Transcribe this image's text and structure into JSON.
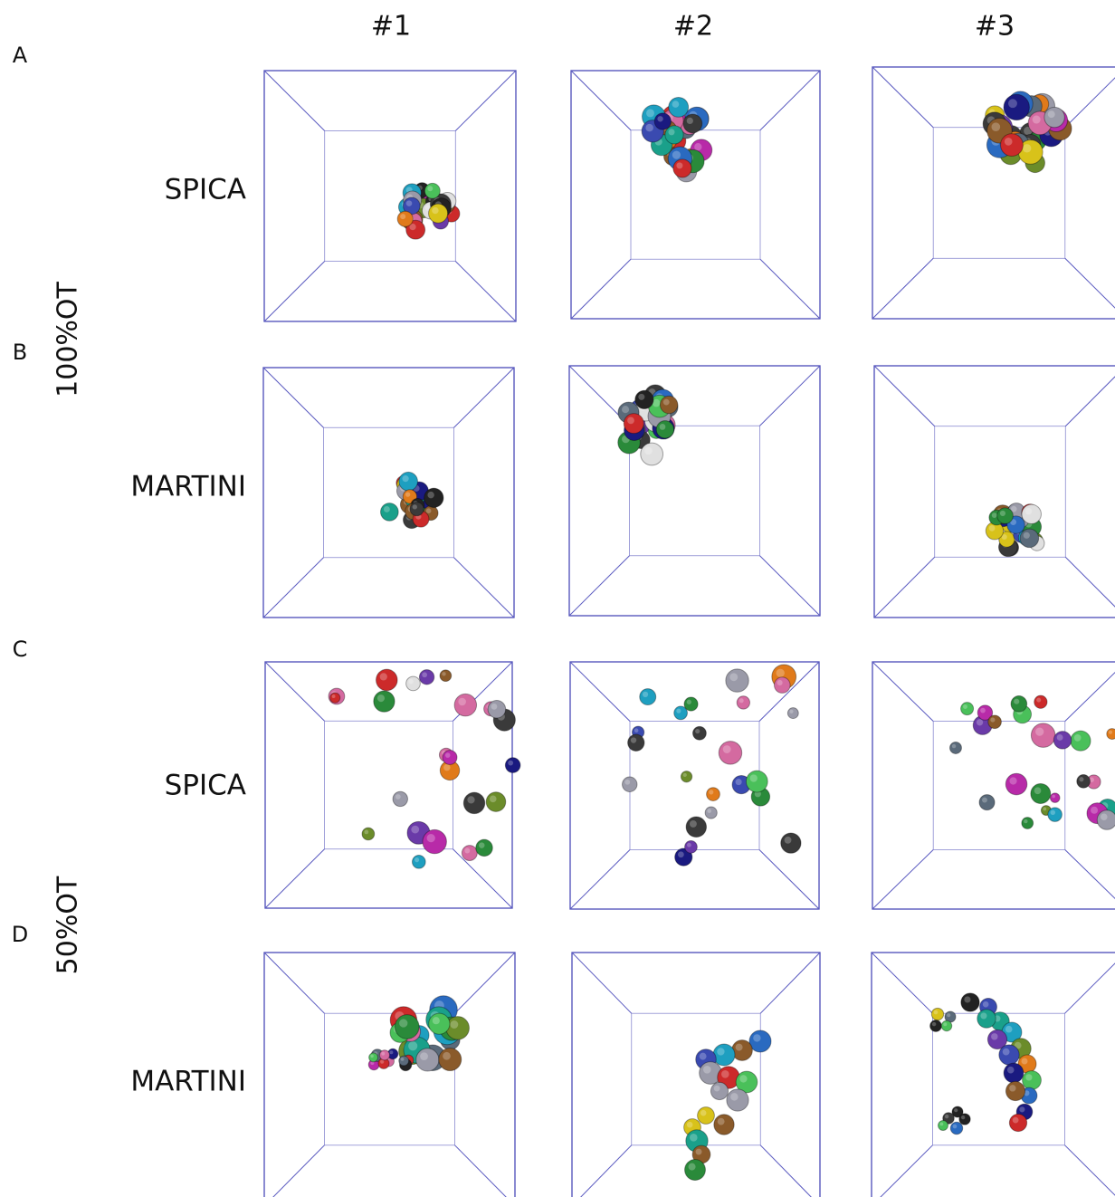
{
  "columns": [
    "#1",
    "#2",
    "#3"
  ],
  "row_letters": [
    "A",
    "B",
    "C",
    "D"
  ],
  "row_labels": [
    "SPICA",
    "MARTINI",
    "SPICA",
    "MARTINI"
  ],
  "group_labels": [
    "100%OT",
    "50%OT"
  ]
}
